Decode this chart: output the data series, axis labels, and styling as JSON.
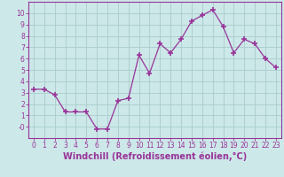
{
  "x": [
    0,
    1,
    2,
    3,
    4,
    5,
    6,
    7,
    8,
    9,
    10,
    11,
    12,
    13,
    14,
    15,
    16,
    17,
    18,
    19,
    20,
    21,
    22,
    23
  ],
  "y": [
    3.3,
    3.3,
    2.8,
    1.3,
    1.3,
    1.3,
    -0.2,
    -0.2,
    2.3,
    2.5,
    6.3,
    4.7,
    7.3,
    6.5,
    7.7,
    9.3,
    9.8,
    10.3,
    8.8,
    6.5,
    7.7,
    7.3,
    6.0,
    5.2
  ],
  "line_color": "#993399",
  "marker": "+",
  "marker_size": 4,
  "bg_color": "#cce8e8",
  "grid_color": "#aacccc",
  "xlim": [
    -0.5,
    23.5
  ],
  "ylim": [
    -1.0,
    11.0
  ],
  "yticks": [
    0,
    1,
    2,
    3,
    4,
    5,
    6,
    7,
    8,
    9,
    10
  ],
  "ytick_labels": [
    "-0",
    "1",
    "2",
    "3",
    "4",
    "5",
    "6",
    "7",
    "8",
    "9",
    "10"
  ],
  "xticks": [
    0,
    1,
    2,
    3,
    4,
    5,
    6,
    7,
    8,
    9,
    10,
    11,
    12,
    13,
    14,
    15,
    16,
    17,
    18,
    19,
    20,
    21,
    22,
    23
  ],
  "xlabel": "Windchill (Refroidissement éolien,°C)",
  "font_color": "#993399",
  "tick_fontsize": 5.5,
  "label_fontsize": 7
}
